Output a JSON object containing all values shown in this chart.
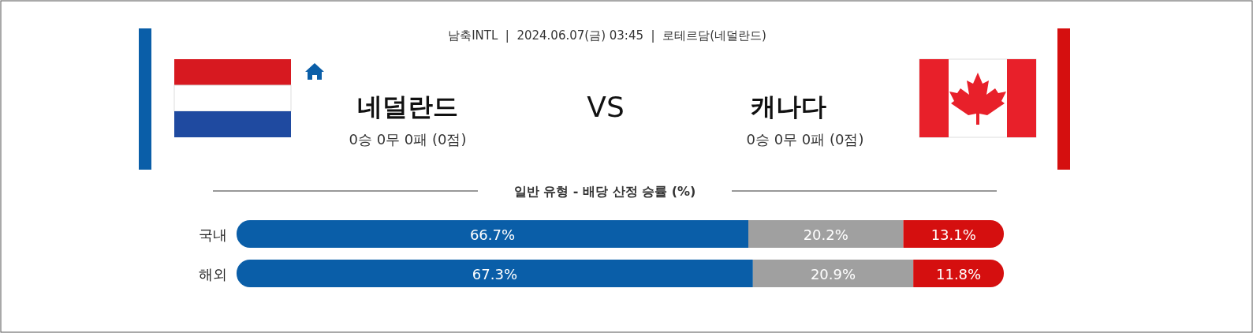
{
  "chart_data": [
    {
      "type": "other",
      "annotations": [
        "남축INTL  |  2024.06.07(금) 03:45  |  로테르담(네덜란드)",
        "네덜란드",
        "VS",
        "캐나다",
        "0승 0무 0패 (0점)",
        "0승 0무 0패 (0점)"
      ]
    },
    {
      "type": "bar",
      "orientation": "horizontal",
      "stacked": true,
      "title": "일반 유형 - 배당 산정 승률 (%)",
      "categories": [
        "국내",
        "해외"
      ],
      "series": [
        {
          "color": "#0a5ea8",
          "values": [
            66.7,
            67.3
          ],
          "value_labels": [
            "66.7%",
            "67.3%"
          ]
        },
        {
          "color": "#a0a0a0",
          "values": [
            20.2,
            20.9
          ],
          "value_labels": [
            "20.2%",
            "20.9%"
          ]
        },
        {
          "color": "#d50f0f",
          "values": [
            13.1,
            11.8
          ],
          "value_labels": [
            "13.1%",
            "11.8%"
          ]
        }
      ]
    }
  ]
}
